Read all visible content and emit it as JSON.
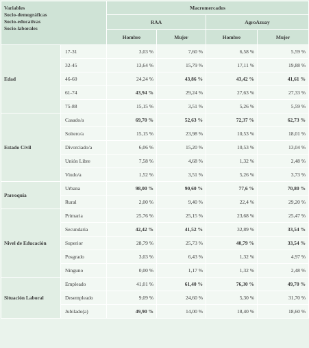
{
  "header": {
    "variables": [
      "Variables",
      "Socio-demográficas",
      "Socio-educativas",
      "Socio-laborales"
    ],
    "macro": "Macromercados",
    "markets": [
      "RAA",
      "AgroAzuay"
    ],
    "genders": [
      "Hombre",
      "Mujer",
      "Hombre",
      "Mujer"
    ]
  },
  "groups": [
    {
      "label": "Edad",
      "rows": [
        {
          "label": "17-31",
          "cells": [
            "3,03 %",
            "7,60 %",
            "6,58 %",
            "5,59 %"
          ]
        },
        {
          "label": "32-45",
          "cells": [
            "13,64 %",
            "15,79 %",
            "17,11 %",
            "19,88 %"
          ]
        },
        {
          "label": "46-60",
          "cells": [
            "24,24 %",
            "43,86 %",
            "43,42 %",
            "41,61 %"
          ],
          "bold": [
            1,
            2,
            3
          ]
        },
        {
          "label": "61-74",
          "cells": [
            "43,94 %",
            "29,24 %",
            "27,63 %",
            "27,33 %"
          ],
          "bold": [
            0
          ]
        },
        {
          "label": "75-88",
          "cells": [
            "15,15 %",
            "3,51 %",
            "5,26 %",
            "5,59 %"
          ]
        }
      ]
    },
    {
      "label": "Estado Civil",
      "rows": [
        {
          "label": "Casado/a",
          "cells": [
            "69,70 %",
            "52,63 %",
            "72,37 %",
            "62,73 %"
          ],
          "bold": [
            0,
            1,
            2,
            3
          ]
        },
        {
          "label": "Soltero/a",
          "cells": [
            "15,15 %",
            "23,98 %",
            "10,53 %",
            "18,01 %"
          ]
        },
        {
          "label": "Divorciado/a",
          "cells": [
            "6,06 %",
            "15,20 %",
            "10,53 %",
            "13,04 %"
          ]
        },
        {
          "label": "Unión Libre",
          "cells": [
            "7,58 %",
            "4,68 %",
            "1,32 %",
            "2,48 %"
          ]
        },
        {
          "label": "Viudo/a",
          "cells": [
            "1,52 %",
            "3,51 %",
            "5,26 %",
            "3,73 %"
          ]
        }
      ]
    },
    {
      "label": "Parroquia",
      "rows": [
        {
          "label": "Urbana",
          "cells": [
            "98,00 %",
            "90,60 %",
            "77,6 %",
            "70,80 %"
          ],
          "bold": [
            0,
            1,
            2,
            3
          ]
        },
        {
          "label": "Rural",
          "cells": [
            "2,00 %",
            "9,40 %",
            "22,4 %",
            "29,20 %"
          ]
        }
      ]
    },
    {
      "label": "Nivel de Educación",
      "rows": [
        {
          "label": "Primaria",
          "cells": [
            "25,76 %",
            "25,15 %",
            "23,68 %",
            "25,47 %"
          ]
        },
        {
          "label": "Secundaria",
          "cells": [
            "42,42 %",
            "41,52 %",
            "32,89 %",
            "33,54 %"
          ],
          "bold": [
            0,
            1,
            3
          ]
        },
        {
          "label": "Superior",
          "cells": [
            "28,79 %",
            "25,73 %",
            "40,79 %",
            "33,54 %"
          ],
          "bold": [
            2,
            3
          ]
        },
        {
          "label": "Posgrado",
          "cells": [
            "3,03 %",
            "6,43 %",
            "1,32 %",
            "4,97 %"
          ]
        },
        {
          "label": "Ninguno",
          "cells": [
            "0,00 %",
            "1,17 %",
            "1,32 %",
            "2,48 %"
          ]
        }
      ]
    },
    {
      "label": "Situación Laboral",
      "rows": [
        {
          "label": "Empleado",
          "cells": [
            "41,01 %",
            "61,40 %",
            "76,30 %",
            "49,70 %"
          ],
          "bold": [
            1,
            2,
            3
          ]
        },
        {
          "label": "Desempleado",
          "cells": [
            "9,09 %",
            "24,60 %",
            "5,30 %",
            "31,70 %"
          ]
        },
        {
          "label": "Jubilado(a)",
          "cells": [
            "49,90 %",
            "14,00 %",
            "18,40 %",
            "18,60 %"
          ],
          "bold": [
            0
          ]
        }
      ]
    }
  ]
}
